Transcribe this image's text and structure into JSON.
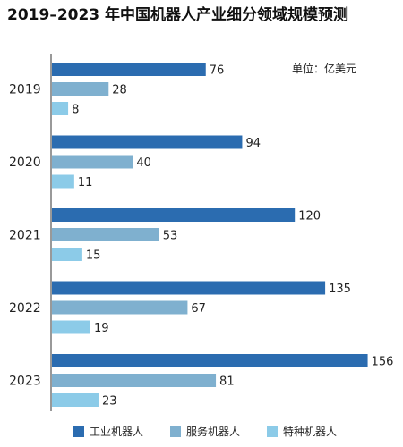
{
  "chart_data": {
    "type": "bar",
    "orientation": "horizontal",
    "title": "2019–2023 年中国机器人产业细分领域规模预测",
    "unit_note": "单位：亿美元",
    "categories": [
      "2019",
      "2020",
      "2021",
      "2022",
      "2023"
    ],
    "series": [
      {
        "name": "工业机器人",
        "color": "#2b6cb0",
        "values": [
          76,
          94,
          120,
          135,
          156
        ]
      },
      {
        "name": "服务机器人",
        "color": "#7fb0cf",
        "values": [
          28,
          40,
          53,
          67,
          81
        ]
      },
      {
        "name": "特种机器人",
        "color": "#8ccbe8",
        "values": [
          8,
          11,
          15,
          19,
          23
        ]
      }
    ],
    "xlim": [
      0,
      160
    ],
    "grid": false,
    "data_labels": true,
    "legend_position": "bottom"
  }
}
